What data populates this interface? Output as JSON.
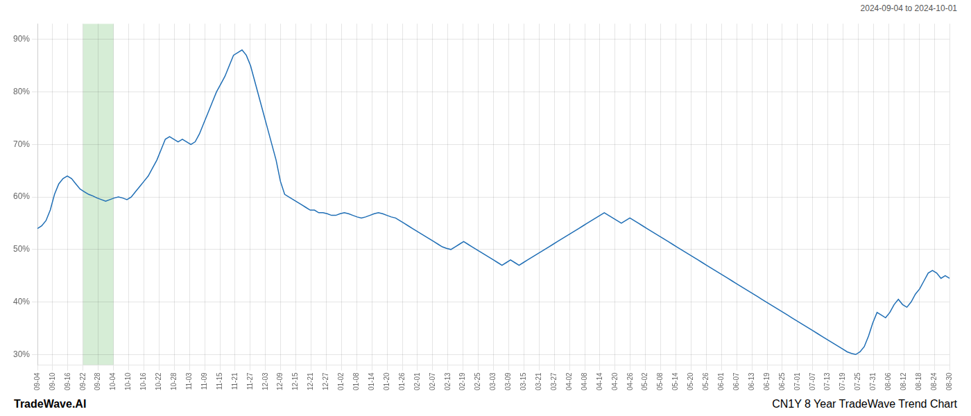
{
  "chart_data": {
    "type": "line",
    "annotations": [
      "2024-09-04 to 2024-10-01",
      "TradeWave.AI",
      "CN1Y 8 Year TradeWave Trend Chart"
    ],
    "color": "#1f6eb5",
    "grid": true,
    "highlight": {
      "from": "09-22",
      "to": "10-04",
      "color": "#d6edd6"
    },
    "ylim": [
      28,
      93
    ],
    "yticks": [
      {
        "value": 30,
        "label": "30%"
      },
      {
        "value": 40,
        "label": "40%"
      },
      {
        "value": 50,
        "label": "50%"
      },
      {
        "value": 60,
        "label": "60%"
      },
      {
        "value": 70,
        "label": "70%"
      },
      {
        "value": 80,
        "label": "80%"
      },
      {
        "value": 90,
        "label": "90%"
      }
    ],
    "xlim": [
      0,
      60
    ],
    "xticks": [
      {
        "value": 0,
        "label": "09-04"
      },
      {
        "value": 1,
        "label": "09-10"
      },
      {
        "value": 2,
        "label": "09-16"
      },
      {
        "value": 3,
        "label": "09-22"
      },
      {
        "value": 4,
        "label": "09-28"
      },
      {
        "value": 5,
        "label": "10-04"
      },
      {
        "value": 6,
        "label": "10-10"
      },
      {
        "value": 7,
        "label": "10-16"
      },
      {
        "value": 8,
        "label": "10-22"
      },
      {
        "value": 9,
        "label": "10-28"
      },
      {
        "value": 10,
        "label": "11-03"
      },
      {
        "value": 11,
        "label": "11-09"
      },
      {
        "value": 12,
        "label": "11-15"
      },
      {
        "value": 13,
        "label": "11-21"
      },
      {
        "value": 14,
        "label": "11-27"
      },
      {
        "value": 15,
        "label": "12-03"
      },
      {
        "value": 16,
        "label": "12-09"
      },
      {
        "value": 17,
        "label": "12-15"
      },
      {
        "value": 18,
        "label": "12-21"
      },
      {
        "value": 19,
        "label": "12-27"
      },
      {
        "value": 20,
        "label": "01-02"
      },
      {
        "value": 21,
        "label": "01-08"
      },
      {
        "value": 22,
        "label": "01-14"
      },
      {
        "value": 23,
        "label": "01-20"
      },
      {
        "value": 24,
        "label": "01-26"
      },
      {
        "value": 25,
        "label": "02-01"
      },
      {
        "value": 26,
        "label": "02-07"
      },
      {
        "value": 27,
        "label": "02-13"
      },
      {
        "value": 28,
        "label": "02-19"
      },
      {
        "value": 29,
        "label": "02-25"
      },
      {
        "value": 30,
        "label": "03-03"
      },
      {
        "value": 31,
        "label": "03-09"
      },
      {
        "value": 32,
        "label": "03-15"
      },
      {
        "value": 33,
        "label": "03-21"
      },
      {
        "value": 34,
        "label": "03-27"
      },
      {
        "value": 35,
        "label": "04-02"
      },
      {
        "value": 36,
        "label": "04-08"
      },
      {
        "value": 37,
        "label": "04-14"
      },
      {
        "value": 38,
        "label": "04-20"
      },
      {
        "value": 39,
        "label": "04-26"
      },
      {
        "value": 40,
        "label": "05-02"
      },
      {
        "value": 41,
        "label": "05-08"
      },
      {
        "value": 42,
        "label": "05-14"
      },
      {
        "value": 43,
        "label": "05-20"
      },
      {
        "value": 44,
        "label": "05-26"
      },
      {
        "value": 45,
        "label": "06-01"
      },
      {
        "value": 46,
        "label": "06-07"
      },
      {
        "value": 47,
        "label": "06-13"
      },
      {
        "value": 48,
        "label": "06-19"
      },
      {
        "value": 49,
        "label": "06-25"
      },
      {
        "value": 50,
        "label": "07-01"
      },
      {
        "value": 51,
        "label": "07-07"
      },
      {
        "value": 52,
        "label": "07-13"
      },
      {
        "value": 53,
        "label": "07-19"
      },
      {
        "value": 54,
        "label": "07-25"
      },
      {
        "value": 55,
        "label": "07-31"
      },
      {
        "value": 56,
        "label": "08-06"
      },
      {
        "value": 57,
        "label": "08-12"
      },
      {
        "value": 58,
        "label": "08-18"
      },
      {
        "value": 59,
        "label": "08-24"
      },
      {
        "value": 60,
        "label": "08-30"
      }
    ],
    "values": [
      54.0,
      54.5,
      55.5,
      57.5,
      60.5,
      62.5,
      63.5,
      64.0,
      63.5,
      62.5,
      61.5,
      61.0,
      60.5,
      60.2,
      59.8,
      59.5,
      59.2,
      59.5,
      59.8,
      60.0,
      59.8,
      59.5,
      60.0,
      61.0,
      62.0,
      63.0,
      64.0,
      65.5,
      67.0,
      69.0,
      71.0,
      71.5,
      71.0,
      70.5,
      71.0,
      70.5,
      70.0,
      70.5,
      72.0,
      74.0,
      76.0,
      78.0,
      80.0,
      81.5,
      83.0,
      85.0,
      87.0,
      87.5,
      88.0,
      87.0,
      85.0,
      82.0,
      79.0,
      76.0,
      73.0,
      70.0,
      67.0,
      63.0,
      60.5,
      60.0,
      59.5,
      59.0,
      58.5,
      58.0,
      57.5,
      57.5,
      57.0,
      57.0,
      56.8,
      56.5,
      56.5,
      56.8,
      57.0,
      56.8,
      56.5,
      56.2,
      56.0,
      56.2,
      56.5,
      56.8,
      57.0,
      56.8,
      56.5,
      56.2,
      56.0,
      55.5,
      55.0,
      54.5,
      54.0,
      53.5,
      53.0,
      52.5,
      52.0,
      51.5,
      51.0,
      50.5,
      50.2,
      50.0,
      50.5,
      51.0,
      51.5,
      51.0,
      50.5,
      50.0,
      49.5,
      49.0,
      48.5,
      48.0,
      47.5,
      47.0,
      47.5,
      48.0,
      47.5,
      47.0,
      47.5,
      48.0,
      48.5,
      49.0,
      49.5,
      50.0,
      50.5,
      51.0,
      51.5,
      52.0,
      52.5,
      53.0,
      53.5,
      54.0,
      54.5,
      55.0,
      55.5,
      56.0,
      56.5,
      57.0,
      56.5,
      56.0,
      55.5,
      55.0,
      55.5,
      56.0,
      55.5,
      55.0,
      54.5,
      54.0,
      53.5,
      53.0,
      52.5,
      52.0,
      51.5,
      51.0,
      50.5,
      50.0,
      49.5,
      49.0,
      48.5,
      48.0,
      47.5,
      47.0,
      46.5,
      46.0,
      45.5,
      45.0,
      44.5,
      44.0,
      43.5,
      43.0,
      42.5,
      42.0,
      41.5,
      41.0,
      40.5,
      40.0,
      39.5,
      39.0,
      38.5,
      38.0,
      37.5,
      37.0,
      36.5,
      36.0,
      35.5,
      35.0,
      34.5,
      34.0,
      33.5,
      33.0,
      32.5,
      32.0,
      31.5,
      31.0,
      30.5,
      30.2,
      30.0,
      30.5,
      31.5,
      33.5,
      36.0,
      38.0,
      37.5,
      37.0,
      38.0,
      39.5,
      40.5,
      39.5,
      39.0,
      40.0,
      41.5,
      42.5,
      44.0,
      45.5,
      46.0,
      45.5,
      44.5,
      45.0,
      44.5
    ]
  }
}
